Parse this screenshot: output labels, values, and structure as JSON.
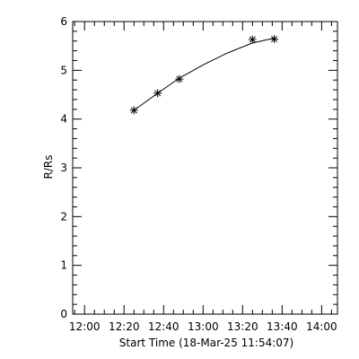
{
  "chart_data": {
    "type": "scatter",
    "title": "",
    "xlabel": "Start Time (18-Mar-25 11:54:07)",
    "ylabel": "R/Rs",
    "x_axis": {
      "min": "11:54",
      "max": "14:08",
      "ticks": [
        {
          "time": "12:00",
          "label": "12:00"
        },
        {
          "time": "12:20",
          "label": "12:20"
        },
        {
          "time": "12:40",
          "label": "12:40"
        },
        {
          "time": "13:00",
          "label": "13:00"
        },
        {
          "time": "13:20",
          "label": "13:20"
        },
        {
          "time": "13:40",
          "label": "13:40"
        },
        {
          "time": "14:00",
          "label": "14:00"
        }
      ]
    },
    "y_axis": {
      "min": 0,
      "max": 6,
      "ticks": [
        0,
        1,
        2,
        3,
        4,
        5,
        6
      ]
    },
    "grid": false,
    "series": [
      {
        "marker": "asterisk",
        "points": [
          {
            "x": "12:25",
            "y": 4.18
          },
          {
            "x": "12:37",
            "y": 4.53
          },
          {
            "x": "12:48",
            "y": 4.82
          },
          {
            "x": "13:25",
            "y": 5.63
          },
          {
            "x": "13:36",
            "y": 5.64
          }
        ]
      }
    ],
    "fit": {
      "style": "curve",
      "from": "12:25",
      "to": "13:36",
      "points": [
        {
          "x": "12:25",
          "y": 4.18
        },
        {
          "x": "12:37",
          "y": 4.53
        },
        {
          "x": "12:48",
          "y": 4.84
        },
        {
          "x": "13:00",
          "y": 5.11
        },
        {
          "x": "13:12",
          "y": 5.35
        },
        {
          "x": "13:25",
          "y": 5.56
        },
        {
          "x": "13:36",
          "y": 5.66
        }
      ]
    }
  }
}
